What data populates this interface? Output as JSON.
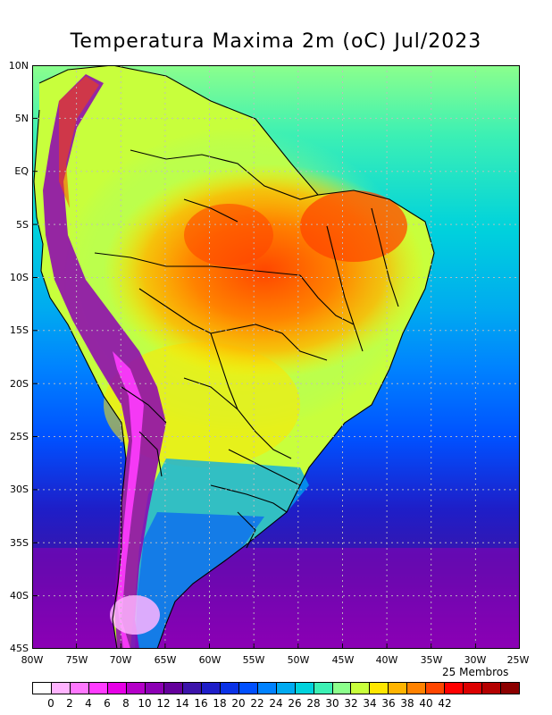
{
  "title": "Temperatura Maxima 2m (oC) Jul/2023",
  "members_note": "25 Membros",
  "lat_labels": [
    "10N",
    "5N",
    "EQ",
    "5S",
    "10S",
    "15S",
    "20S",
    "25S",
    "30S",
    "35S",
    "40S",
    "45S"
  ],
  "lon_labels": [
    "80W",
    "75W",
    "70W",
    "65W",
    "60W",
    "55W",
    "50W",
    "45W",
    "40W",
    "35W",
    "30W",
    "25W"
  ],
  "colorbar": {
    "ticks": [
      "0",
      "2",
      "4",
      "6",
      "8",
      "10",
      "12",
      "14",
      "16",
      "18",
      "20",
      "22",
      "24",
      "26",
      "28",
      "30",
      "32",
      "34",
      "36",
      "38",
      "40",
      "42"
    ],
    "colors": [
      "#ffffff",
      "#ffb4ff",
      "#ff78ff",
      "#ff3cff",
      "#e600e6",
      "#b400c8",
      "#8c00b4",
      "#64009b",
      "#3c14aa",
      "#1e1ec8",
      "#0a32e6",
      "#0050ff",
      "#0082ff",
      "#00aaf0",
      "#00d2dc",
      "#3cf0b4",
      "#8cff8c",
      "#c8ff3c",
      "#ffe600",
      "#ffb400",
      "#ff8200",
      "#ff4600",
      "#ff0000",
      "#dc0000",
      "#b40000",
      "#8c0000"
    ]
  }
}
